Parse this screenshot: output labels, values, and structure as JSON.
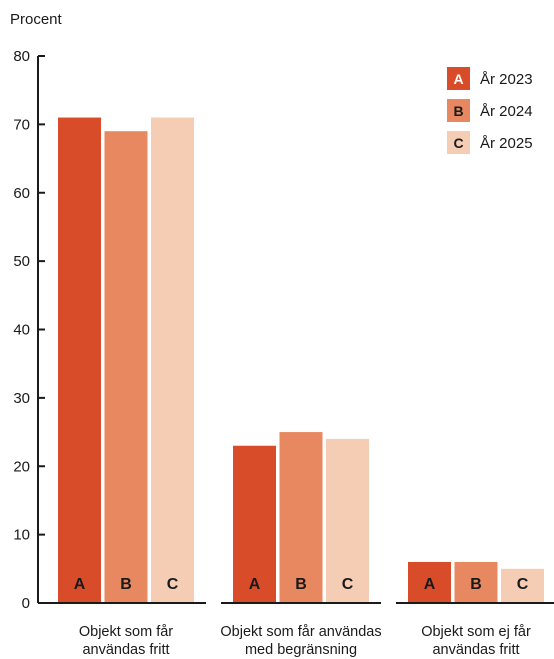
{
  "chart_data": {
    "type": "bar",
    "ylabel": "Procent",
    "ylim": [
      0,
      80
    ],
    "yticks": [
      0,
      10,
      20,
      30,
      40,
      50,
      60,
      70,
      80
    ],
    "categories": [
      [
        "Objekt som får",
        "användas fritt"
      ],
      [
        "Objekt som får användas",
        "med begränsning"
      ],
      [
        "Objekt som ej får",
        "användas fritt"
      ]
    ],
    "series": [
      {
        "name": "År 2023",
        "letter": "A",
        "color": "#d84c2a",
        "values": [
          71,
          23,
          6
        ]
      },
      {
        "name": "År 2024",
        "letter": "B",
        "color": "#e88860",
        "values": [
          69,
          25,
          6
        ]
      },
      {
        "name": "År 2025",
        "letter": "C",
        "color": "#f5cdb5",
        "values": [
          71,
          24,
          5
        ]
      }
    ],
    "legend_position": "top-right",
    "grid": false
  }
}
